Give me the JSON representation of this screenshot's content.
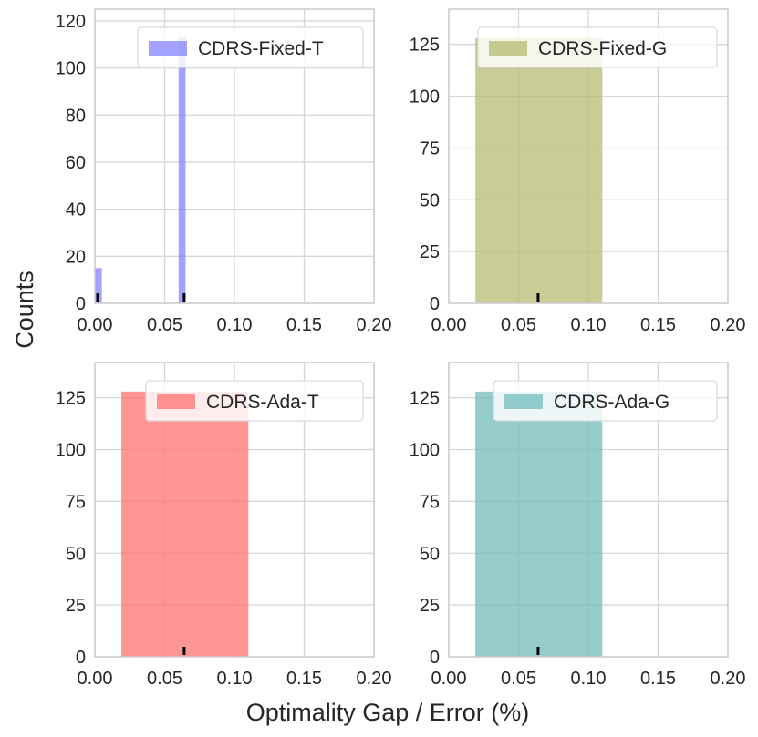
{
  "figure": {
    "ylabel": "Counts",
    "xlabel": "Optimality Gap / Error (%)"
  },
  "chart_data": [
    {
      "type": "histogram",
      "legend": "CDRS-Fixed-T",
      "color": "#8080ff",
      "xlim": [
        0.0,
        0.2
      ],
      "ylim": [
        0,
        125
      ],
      "xticks": [
        "0.00",
        "0.05",
        "0.10",
        "0.15",
        "0.20"
      ],
      "yticks": [
        "0",
        "20",
        "40",
        "60",
        "80",
        "100",
        "120"
      ],
      "ytick_values": [
        0,
        20,
        40,
        60,
        80,
        100,
        120
      ],
      "bins": [
        {
          "x0": 0.0,
          "x1": 0.005,
          "count": 15
        },
        {
          "x0": 0.06,
          "x1": 0.065,
          "count": 113
        }
      ],
      "rug": [
        0.002,
        0.064
      ]
    },
    {
      "type": "histogram",
      "legend": "CDRS-Fixed-G",
      "color": "#b4b96c",
      "xlim": [
        0.0,
        0.2
      ],
      "ylim": [
        0,
        142
      ],
      "xticks": [
        "0.00",
        "0.05",
        "0.10",
        "0.15",
        "0.20"
      ],
      "yticks": [
        "0",
        "25",
        "50",
        "75",
        "100",
        "125"
      ],
      "ytick_values": [
        0,
        25,
        50,
        75,
        100,
        125
      ],
      "bins": [
        {
          "x0": 0.019,
          "x1": 0.11,
          "count": 128
        }
      ],
      "rug": [
        0.064
      ]
    },
    {
      "type": "histogram",
      "legend": "CDRS-Ada-T",
      "color": "#ff6e6e",
      "xlim": [
        0.0,
        0.2
      ],
      "ylim": [
        0,
        142
      ],
      "xticks": [
        "0.00",
        "0.05",
        "0.10",
        "0.15",
        "0.20"
      ],
      "yticks": [
        "0",
        "25",
        "50",
        "75",
        "100",
        "125"
      ],
      "ytick_values": [
        0,
        25,
        50,
        75,
        100,
        125
      ],
      "bins": [
        {
          "x0": 0.019,
          "x1": 0.11,
          "count": 128
        }
      ],
      "rug": [
        0.064
      ]
    },
    {
      "type": "histogram",
      "legend": "CDRS-Ada-G",
      "color": "#6db8b8",
      "xlim": [
        0.0,
        0.2
      ],
      "ylim": [
        0,
        142
      ],
      "xticks": [
        "0.00",
        "0.05",
        "0.10",
        "0.15",
        "0.20"
      ],
      "yticks": [
        "0",
        "25",
        "50",
        "75",
        "100",
        "125"
      ],
      "ytick_values": [
        0,
        25,
        50,
        75,
        100,
        125
      ],
      "bins": [
        {
          "x0": 0.019,
          "x1": 0.11,
          "count": 128
        }
      ],
      "rug": [
        0.064
      ]
    }
  ]
}
